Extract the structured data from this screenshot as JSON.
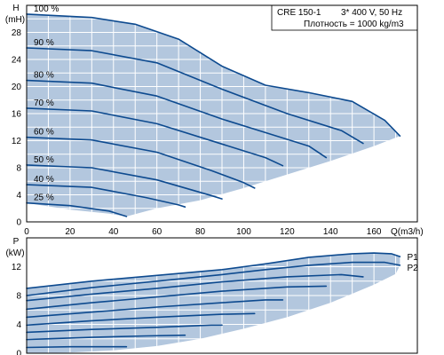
{
  "info": {
    "model": "CRE 150-1",
    "supply": "3* 400 V, 50 Hz",
    "density": "Плотность = 1000 kg/m3"
  },
  "colors": {
    "fill": "#b3c7de",
    "curve": "#0d4a8f",
    "grid": "#ffffff",
    "border": "#000000"
  },
  "chart_data": [
    {
      "type": "line",
      "ylabel_symbol": "H",
      "ylabel_unit": "(mH)",
      "xlabel": "Q(m3/h)",
      "xlim": [
        0,
        180
      ],
      "ylim": [
        0,
        32
      ],
      "xticks": [
        "0",
        "20",
        "40",
        "60",
        "80",
        "100",
        "120",
        "140",
        "160"
      ],
      "yticks": [
        "0",
        "4",
        "8",
        "12",
        "16",
        "20",
        "24",
        "28"
      ],
      "grid": true,
      "envelope": {
        "top": [
          [
            0,
            30.7
          ],
          [
            30,
            30.2
          ],
          [
            50,
            29.2
          ],
          [
            70,
            27.0
          ],
          [
            90,
            23.0
          ],
          [
            110,
            20.2
          ],
          [
            130,
            19.1
          ],
          [
            150,
            17.8
          ],
          [
            165,
            15.0
          ],
          [
            172,
            12.7
          ]
        ],
        "bottom": [
          [
            172,
            12.7
          ],
          [
            160,
            11.2
          ],
          [
            140,
            9.0
          ],
          [
            120,
            7.0
          ],
          [
            100,
            5.0
          ],
          [
            80,
            3.2
          ],
          [
            60,
            2.0
          ],
          [
            46,
            0.8
          ],
          [
            38,
            1.2
          ],
          [
            20,
            1.8
          ],
          [
            0,
            2.8
          ]
        ]
      },
      "series": [
        {
          "name": "100 %",
          "points": [
            [
              0,
              30.7
            ],
            [
              30,
              30.2
            ],
            [
              50,
              29.2
            ],
            [
              70,
              27.0
            ],
            [
              90,
              23.0
            ],
            [
              110,
              20.2
            ],
            [
              130,
              19.1
            ],
            [
              150,
              17.8
            ],
            [
              165,
              15.0
            ],
            [
              172,
              12.7
            ]
          ]
        },
        {
          "name": "90 %",
          "points": [
            [
              0,
              25.7
            ],
            [
              30,
              25.3
            ],
            [
              60,
              23.5
            ],
            [
              90,
              19.6
            ],
            [
              120,
              16.0
            ],
            [
              145,
              13.5
            ],
            [
              155,
              11.6
            ]
          ]
        },
        {
          "name": "80 %",
          "points": [
            [
              0,
              20.9
            ],
            [
              30,
              20.5
            ],
            [
              60,
              18.6
            ],
            [
              90,
              15.2
            ],
            [
              110,
              13.2
            ],
            [
              130,
              11.2
            ],
            [
              138,
              9.5
            ]
          ]
        },
        {
          "name": "70 %",
          "points": [
            [
              0,
              16.8
            ],
            [
              30,
              16.4
            ],
            [
              60,
              14.5
            ],
            [
              90,
              11.5
            ],
            [
              110,
              9.5
            ],
            [
              118,
              8.3
            ]
          ]
        },
        {
          "name": "60 %",
          "points": [
            [
              0,
              12.5
            ],
            [
              30,
              12.1
            ],
            [
              60,
              10.3
            ],
            [
              85,
              7.6
            ],
            [
              100,
              5.8
            ],
            [
              105,
              5.0
            ]
          ]
        },
        {
          "name": "50 %",
          "points": [
            [
              0,
              8.4
            ],
            [
              30,
              8.0
            ],
            [
              60,
              6.2
            ],
            [
              85,
              3.9
            ],
            [
              90,
              3.4
            ]
          ]
        },
        {
          "name": "40 %",
          "points": [
            [
              0,
              5.5
            ],
            [
              30,
              5.1
            ],
            [
              55,
              3.6
            ],
            [
              70,
              2.5
            ],
            [
              73,
              2.2
            ]
          ]
        },
        {
          "name": "25 %",
          "points": [
            [
              0,
              2.8
            ],
            [
              20,
              2.4
            ],
            [
              38,
              1.6
            ],
            [
              46,
              0.8
            ]
          ]
        }
      ]
    },
    {
      "type": "line",
      "ylabel_symbol": "P",
      "ylabel_unit": "(kW)",
      "xlim": [
        0,
        180
      ],
      "ylim": [
        0,
        16
      ],
      "yticks": [
        "0",
        "4",
        "8",
        "12"
      ],
      "grid": true,
      "envelope": {
        "top": [
          [
            0,
            9.0
          ],
          [
            30,
            10.0
          ],
          [
            60,
            10.8
          ],
          [
            90,
            11.6
          ],
          [
            110,
            12.4
          ],
          [
            130,
            13.3
          ],
          [
            150,
            13.8
          ],
          [
            160,
            13.9
          ],
          [
            168,
            13.8
          ],
          [
            172,
            13.4
          ]
        ],
        "bottom": [
          [
            172,
            13.4
          ],
          [
            172,
            12.2
          ],
          [
            170,
            11.0
          ],
          [
            160,
            9.5
          ],
          [
            140,
            7.0
          ],
          [
            120,
            5.0
          ],
          [
            100,
            3.4
          ],
          [
            80,
            2.0
          ],
          [
            60,
            1.0
          ],
          [
            40,
            0.4
          ],
          [
            20,
            0.1
          ],
          [
            0,
            0.0
          ]
        ]
      },
      "series": [
        {
          "name": "P1",
          "points": [
            [
              0,
              9.0
            ],
            [
              30,
              10.0
            ],
            [
              60,
              10.8
            ],
            [
              90,
              11.6
            ],
            [
              110,
              12.4
            ],
            [
              130,
              13.3
            ],
            [
              150,
              13.8
            ],
            [
              160,
              13.9
            ],
            [
              168,
              13.8
            ],
            [
              172,
              13.4
            ]
          ]
        },
        {
          "name": "P2",
          "points": [
            [
              0,
              8.0
            ],
            [
              30,
              9.1
            ],
            [
              60,
              10.0
            ],
            [
              90,
              10.9
            ],
            [
              110,
              11.6
            ],
            [
              130,
              12.2
            ],
            [
              150,
              12.6
            ],
            [
              165,
              12.6
            ],
            [
              172,
              12.2
            ]
          ]
        },
        {
          "name": "",
          "points": [
            [
              0,
              7.3
            ],
            [
              30,
              8.2
            ],
            [
              60,
              9.0
            ],
            [
              90,
              9.9
            ],
            [
              120,
              10.6
            ],
            [
              145,
              10.9
            ],
            [
              155,
              10.6
            ]
          ]
        },
        {
          "name": "",
          "points": [
            [
              0,
              6.1
            ],
            [
              30,
              7.0
            ],
            [
              60,
              7.8
            ],
            [
              90,
              8.6
            ],
            [
              120,
              9.2
            ],
            [
              138,
              9.3
            ]
          ]
        },
        {
          "name": "",
          "points": [
            [
              0,
              5.0
            ],
            [
              30,
              5.7
            ],
            [
              60,
              6.4
            ],
            [
              90,
              7.0
            ],
            [
              110,
              7.4
            ],
            [
              118,
              7.4
            ]
          ]
        },
        {
          "name": "",
          "points": [
            [
              0,
              3.9
            ],
            [
              30,
              4.5
            ],
            [
              60,
              5.0
            ],
            [
              90,
              5.4
            ],
            [
              105,
              5.5
            ]
          ]
        },
        {
          "name": "",
          "points": [
            [
              0,
              2.9
            ],
            [
              30,
              3.3
            ],
            [
              60,
              3.6
            ],
            [
              85,
              3.9
            ],
            [
              90,
              3.9
            ]
          ]
        },
        {
          "name": "",
          "points": [
            [
              0,
              1.9
            ],
            [
              30,
              2.2
            ],
            [
              55,
              2.4
            ],
            [
              73,
              2.5
            ]
          ]
        },
        {
          "name": "",
          "points": [
            [
              0,
              0.8
            ],
            [
              20,
              0.9
            ],
            [
              38,
              0.9
            ],
            [
              46,
              0.9
            ]
          ]
        }
      ]
    }
  ]
}
